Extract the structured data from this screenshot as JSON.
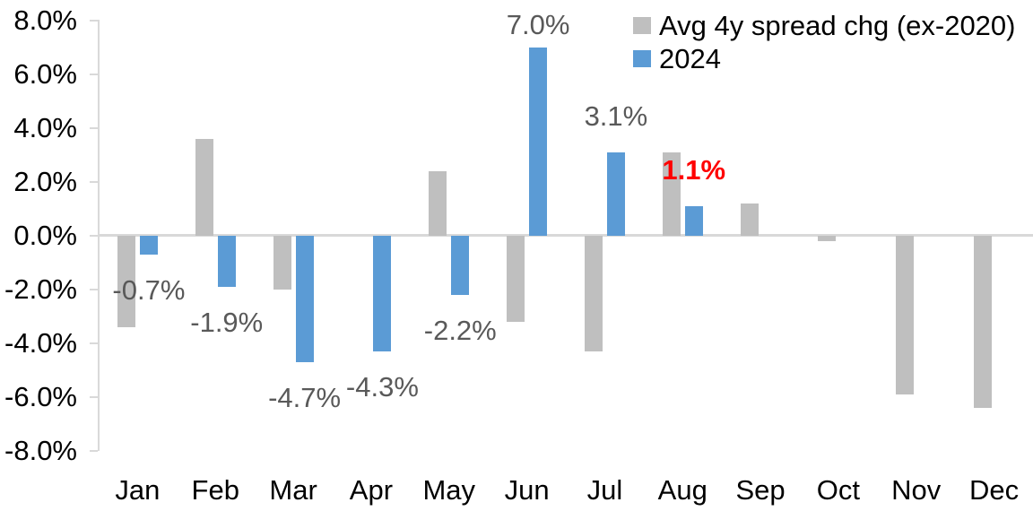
{
  "chart_data": {
    "type": "bar",
    "title": "",
    "categories": [
      "Jan",
      "Feb",
      "Mar",
      "Apr",
      "May",
      "Jun",
      "Jul",
      "Aug",
      "Sep",
      "Oct",
      "Nov",
      "Dec"
    ],
    "series": [
      {
        "name": "Avg 4y spread chg (ex-2020)",
        "color": "#BFBFBF",
        "values": [
          -3.4,
          3.6,
          -2.0,
          0.0,
          2.4,
          -3.2,
          -4.3,
          3.1,
          1.2,
          -0.2,
          -5.9,
          -6.4
        ]
      },
      {
        "name": "2024",
        "color": "#5B9BD5",
        "values": [
          -0.7,
          -1.9,
          -4.7,
          -4.3,
          -2.2,
          7.0,
          3.1,
          1.1,
          null,
          null,
          null,
          null
        ]
      }
    ],
    "ylim": [
      -8,
      8
    ],
    "grid": false,
    "legend_position": "top-right",
    "yticks": [
      {
        "value": 8,
        "label": "8.0%"
      },
      {
        "value": 6,
        "label": "6.0%"
      },
      {
        "value": 4,
        "label": "4.0%"
      },
      {
        "value": 2,
        "label": "2.0%"
      },
      {
        "value": 0,
        "label": "0.0%"
      },
      {
        "value": -2,
        "label": "-2.0%"
      },
      {
        "value": -4,
        "label": "-4.0%"
      },
      {
        "value": -6,
        "label": "-6.0%"
      },
      {
        "value": -8,
        "label": "-8.0%"
      }
    ],
    "annotations": [
      {
        "category": "Jan",
        "series": "2024",
        "text": "-0.7%",
        "color": "#595959",
        "bold": false
      },
      {
        "category": "Feb",
        "series": "2024",
        "text": "-1.9%",
        "color": "#595959",
        "bold": false
      },
      {
        "category": "Mar",
        "series": "2024",
        "text": "-4.7%",
        "color": "#595959",
        "bold": false
      },
      {
        "category": "Apr",
        "series": "2024",
        "text": "-4.3%",
        "color": "#595959",
        "bold": false
      },
      {
        "category": "May",
        "series": "2024",
        "text": "-2.2%",
        "color": "#595959",
        "bold": false
      },
      {
        "category": "Jun",
        "series": "2024",
        "text": "7.0%",
        "color": "#595959",
        "bold": false
      },
      {
        "category": "Jul",
        "series": "2024",
        "text": "3.1%",
        "color": "#595959",
        "bold": false
      },
      {
        "category": "Aug",
        "series": "2024",
        "text": "1.1%",
        "color": "#FF0000",
        "bold": true
      }
    ],
    "colors": {
      "axis": "#D9D9D9",
      "tick_labels": "#000000",
      "background": "#FFFFFF"
    }
  }
}
